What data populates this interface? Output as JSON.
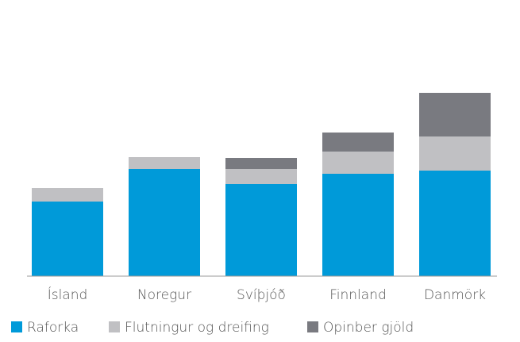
{
  "chart_data": {
    "type": "stacked_bar",
    "categories": [
      "Ísland",
      "Noregur",
      "Svíþjóð",
      "Finnland",
      "Danmörk"
    ],
    "series": [
      {
        "name": "Raforka",
        "color": "#009ad9",
        "values": [
          94,
          135,
          116,
          129,
          133
        ]
      },
      {
        "name": "Flutningur og dreifing",
        "color": "#c0c0c3",
        "values": [
          17,
          15,
          19,
          28,
          43
        ]
      },
      {
        "name": "Opinber gjöld",
        "color": "#797a80",
        "values": [
          null,
          null,
          14,
          24,
          55
        ]
      }
    ],
    "ylim": [
      0,
      260
    ],
    "grid": false,
    "legend": "bottom"
  }
}
